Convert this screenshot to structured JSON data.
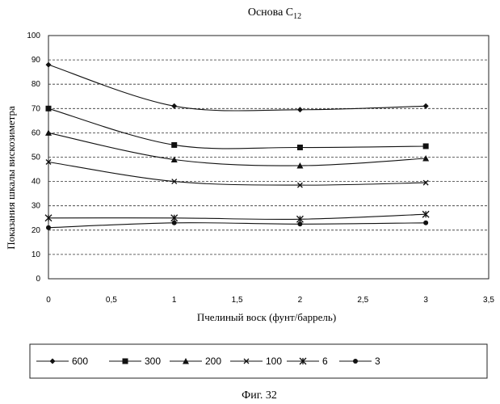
{
  "chart_data": {
    "type": "line",
    "title_base": "Основа C",
    "title_sub": "12",
    "xlabel": "Пчелиный воск (фунт/баррель)",
    "ylabel": "Показания шкалы вискозиметра",
    "xlim": [
      0,
      3.5
    ],
    "ylim": [
      0,
      100
    ],
    "x_ticks": [
      "0",
      "0,5",
      "1",
      "1,5",
      "2",
      "2,5",
      "3",
      "3,5"
    ],
    "y_ticks": [
      "0",
      "10",
      "20",
      "30",
      "40",
      "50",
      "60",
      "70",
      "80",
      "90",
      "100"
    ],
    "grid": true,
    "legend_position": "bottom",
    "x": [
      0,
      1,
      2,
      3
    ],
    "series": [
      {
        "name": "600",
        "marker": "diamond",
        "values": [
          88,
          71,
          69.5,
          71
        ]
      },
      {
        "name": "300",
        "marker": "square",
        "values": [
          70,
          55,
          54,
          54.5
        ]
      },
      {
        "name": "200",
        "marker": "triangle",
        "values": [
          60,
          49,
          46.5,
          49.5
        ]
      },
      {
        "name": "100",
        "marker": "x",
        "values": [
          48,
          40,
          38.5,
          39.5
        ]
      },
      {
        "name": "6",
        "marker": "zhe",
        "values": [
          25,
          25,
          24.5,
          26.5
        ]
      },
      {
        "name": "3",
        "marker": "circle",
        "values": [
          21,
          23,
          22.5,
          23
        ]
      }
    ]
  },
  "caption": "Фиг. 32"
}
